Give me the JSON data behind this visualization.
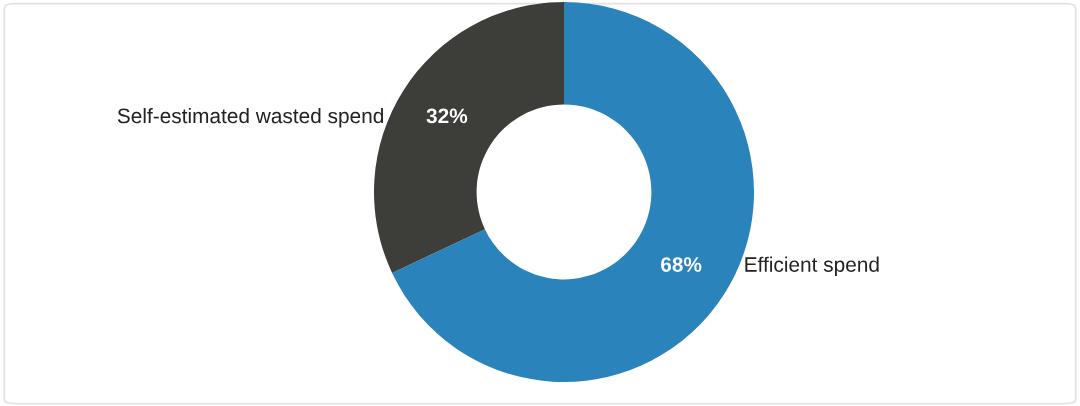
{
  "chart_data": {
    "type": "donut",
    "categories": [
      "Efficient spend",
      "Self-estimated wasted spend"
    ],
    "values": [
      68,
      32
    ],
    "colors": [
      "#2a83bb",
      "#3d3d3a"
    ],
    "value_labels": [
      "68%",
      "32%"
    ],
    "legend": false
  }
}
